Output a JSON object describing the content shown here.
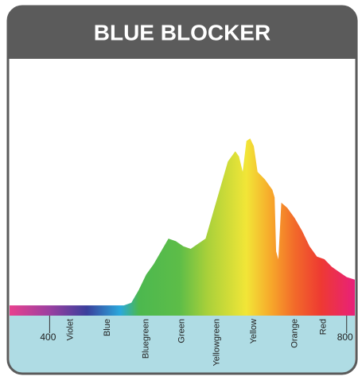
{
  "chart_data": {
    "type": "area",
    "title": "BLUE BLOCKER",
    "x": [
      346,
      400,
      450,
      500,
      510,
      520,
      530,
      540,
      550,
      560,
      570,
      580,
      590,
      600,
      610,
      620,
      630,
      640,
      650,
      655,
      660,
      665,
      670,
      675,
      680,
      690,
      700,
      703,
      705,
      708,
      712,
      720,
      730,
      740,
      750,
      760,
      770,
      780,
      790,
      800,
      811
    ],
    "values": [
      4,
      4,
      4,
      4,
      5,
      10,
      16,
      20,
      25,
      30,
      29,
      27,
      26,
      28,
      30,
      40,
      50,
      60,
      64,
      62,
      56,
      68,
      69,
      66,
      56,
      53,
      49,
      46,
      25,
      22,
      44,
      42,
      38,
      33,
      27,
      23,
      22,
      19,
      17,
      15,
      14
    ],
    "xlim": [
      346,
      811
    ],
    "ylim": [
      0,
      100
    ],
    "xticks": [
      400,
      800
    ],
    "band_labels": [
      {
        "value": 428,
        "label": "Violet"
      },
      {
        "value": 478,
        "label": "Blue"
      },
      {
        "value": 530,
        "label": "Bluegreen"
      },
      {
        "value": 578,
        "label": "Green"
      },
      {
        "value": 625,
        "label": "Yellowgreen"
      },
      {
        "value": 675,
        "label": "Yellow"
      },
      {
        "value": 730,
        "label": "Orange"
      },
      {
        "value": 769,
        "label": "Red"
      }
    ],
    "color_stops": [
      {
        "x": 346,
        "color": "#e8408e"
      },
      {
        "x": 400,
        "color": "#9b3fa0"
      },
      {
        "x": 450,
        "color": "#3a3f9c"
      },
      {
        "x": 495,
        "color": "#2aa8dc"
      },
      {
        "x": 520,
        "color": "#4cb84f"
      },
      {
        "x": 575,
        "color": "#5dbd48"
      },
      {
        "x": 612,
        "color": "#a8d03a"
      },
      {
        "x": 665,
        "color": "#f2e637"
      },
      {
        "x": 700,
        "color": "#f7a42a"
      },
      {
        "x": 730,
        "color": "#f26a2a"
      },
      {
        "x": 765,
        "color": "#ee3a32"
      },
      {
        "x": 811,
        "color": "#e8207a"
      }
    ]
  }
}
